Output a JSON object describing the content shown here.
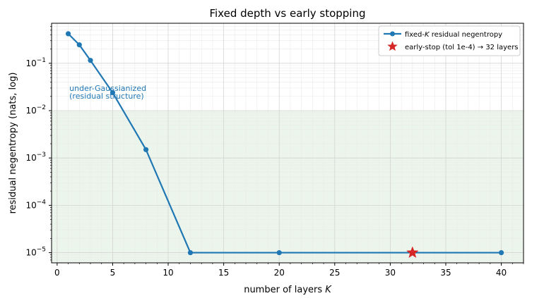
{
  "chart_data": {
    "type": "line",
    "title": "Fixed depth vs early stopping",
    "xlabel_prefix": "number of layers ",
    "xlabel_var": "K",
    "ylabel": "residual negentropy (nats, log)",
    "xlim": [
      -0.5,
      42
    ],
    "ylim": [
      6.1e-06,
      0.7
    ],
    "y_scale": "log",
    "x_ticks": [
      0,
      5,
      10,
      15,
      20,
      25,
      30,
      35,
      40
    ],
    "y_ticks": [
      {
        "value": 0.1,
        "base": "10",
        "exp": "−1"
      },
      {
        "value": 0.01,
        "base": "10",
        "exp": "−2"
      },
      {
        "value": 0.001,
        "base": "10",
        "exp": "−3"
      },
      {
        "value": 0.0001,
        "base": "10",
        "exp": "−4"
      },
      {
        "value": 1e-05,
        "base": "10",
        "exp": "−5"
      }
    ],
    "grid": true,
    "shaded_region": {
      "y_from": 6.1e-06,
      "y_to": 0.01,
      "color": "#e3f1e3"
    },
    "annotation": {
      "lines": [
        "under-Gaussianized",
        "(residual structure)"
      ],
      "x": 1.1,
      "y": 0.026,
      "color": "#1f77b4"
    },
    "series": [
      {
        "name_prefix": "fixed-",
        "name_var": "K",
        "name_suffix": " residual negentropy",
        "color": "#1f77b4",
        "x": [
          1,
          2,
          3,
          5,
          8,
          12,
          20,
          32,
          40
        ],
        "y": [
          0.42,
          0.245,
          0.115,
          0.024,
          0.0015,
          1e-05,
          1e-05,
          1e-05,
          1e-05
        ]
      }
    ],
    "marker": {
      "name": "early-stop (tol 1e-4) → 32 layers",
      "x": 32,
      "y": 1e-05,
      "color": "#d62728"
    },
    "legend_position": "top-right"
  }
}
